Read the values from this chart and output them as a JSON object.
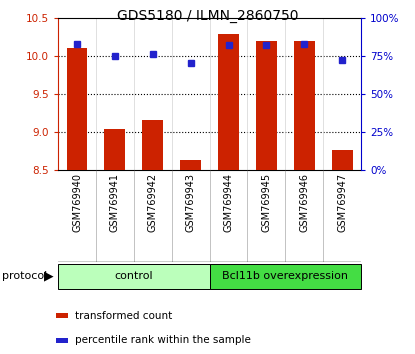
{
  "title": "GDS5180 / ILMN_2860750",
  "samples": [
    "GSM769940",
    "GSM769941",
    "GSM769942",
    "GSM769943",
    "GSM769944",
    "GSM769945",
    "GSM769946",
    "GSM769947"
  ],
  "transformed_count": [
    10.1,
    9.04,
    9.15,
    8.63,
    10.29,
    10.2,
    10.2,
    8.76
  ],
  "percentile_rank": [
    83,
    75,
    76,
    70,
    82,
    82,
    83,
    72
  ],
  "ylim_left": [
    8.5,
    10.5
  ],
  "ylim_right": [
    0,
    100
  ],
  "yticks_left": [
    8.5,
    9.0,
    9.5,
    10.0,
    10.5
  ],
  "yticks_right": [
    0,
    25,
    50,
    75,
    100
  ],
  "ytick_labels_right": [
    "0%",
    "25%",
    "50%",
    "75%",
    "100%"
  ],
  "bar_color": "#cc2200",
  "dot_color": "#2222cc",
  "group_labels": [
    "control",
    "Bcl11b overexpression"
  ],
  "group_colors_light": "#bbffbb",
  "group_colors_dark": "#44dd44",
  "protocol_label": "protocol",
  "legend_items": [
    "transformed count",
    "percentile rank within the sample"
  ],
  "legend_colors": [
    "#cc2200",
    "#2222cc"
  ],
  "background_color": "#ffffff",
  "label_area_color": "#cccccc",
  "spine_color_left": "#cc2200",
  "spine_color_right": "#0000cc"
}
